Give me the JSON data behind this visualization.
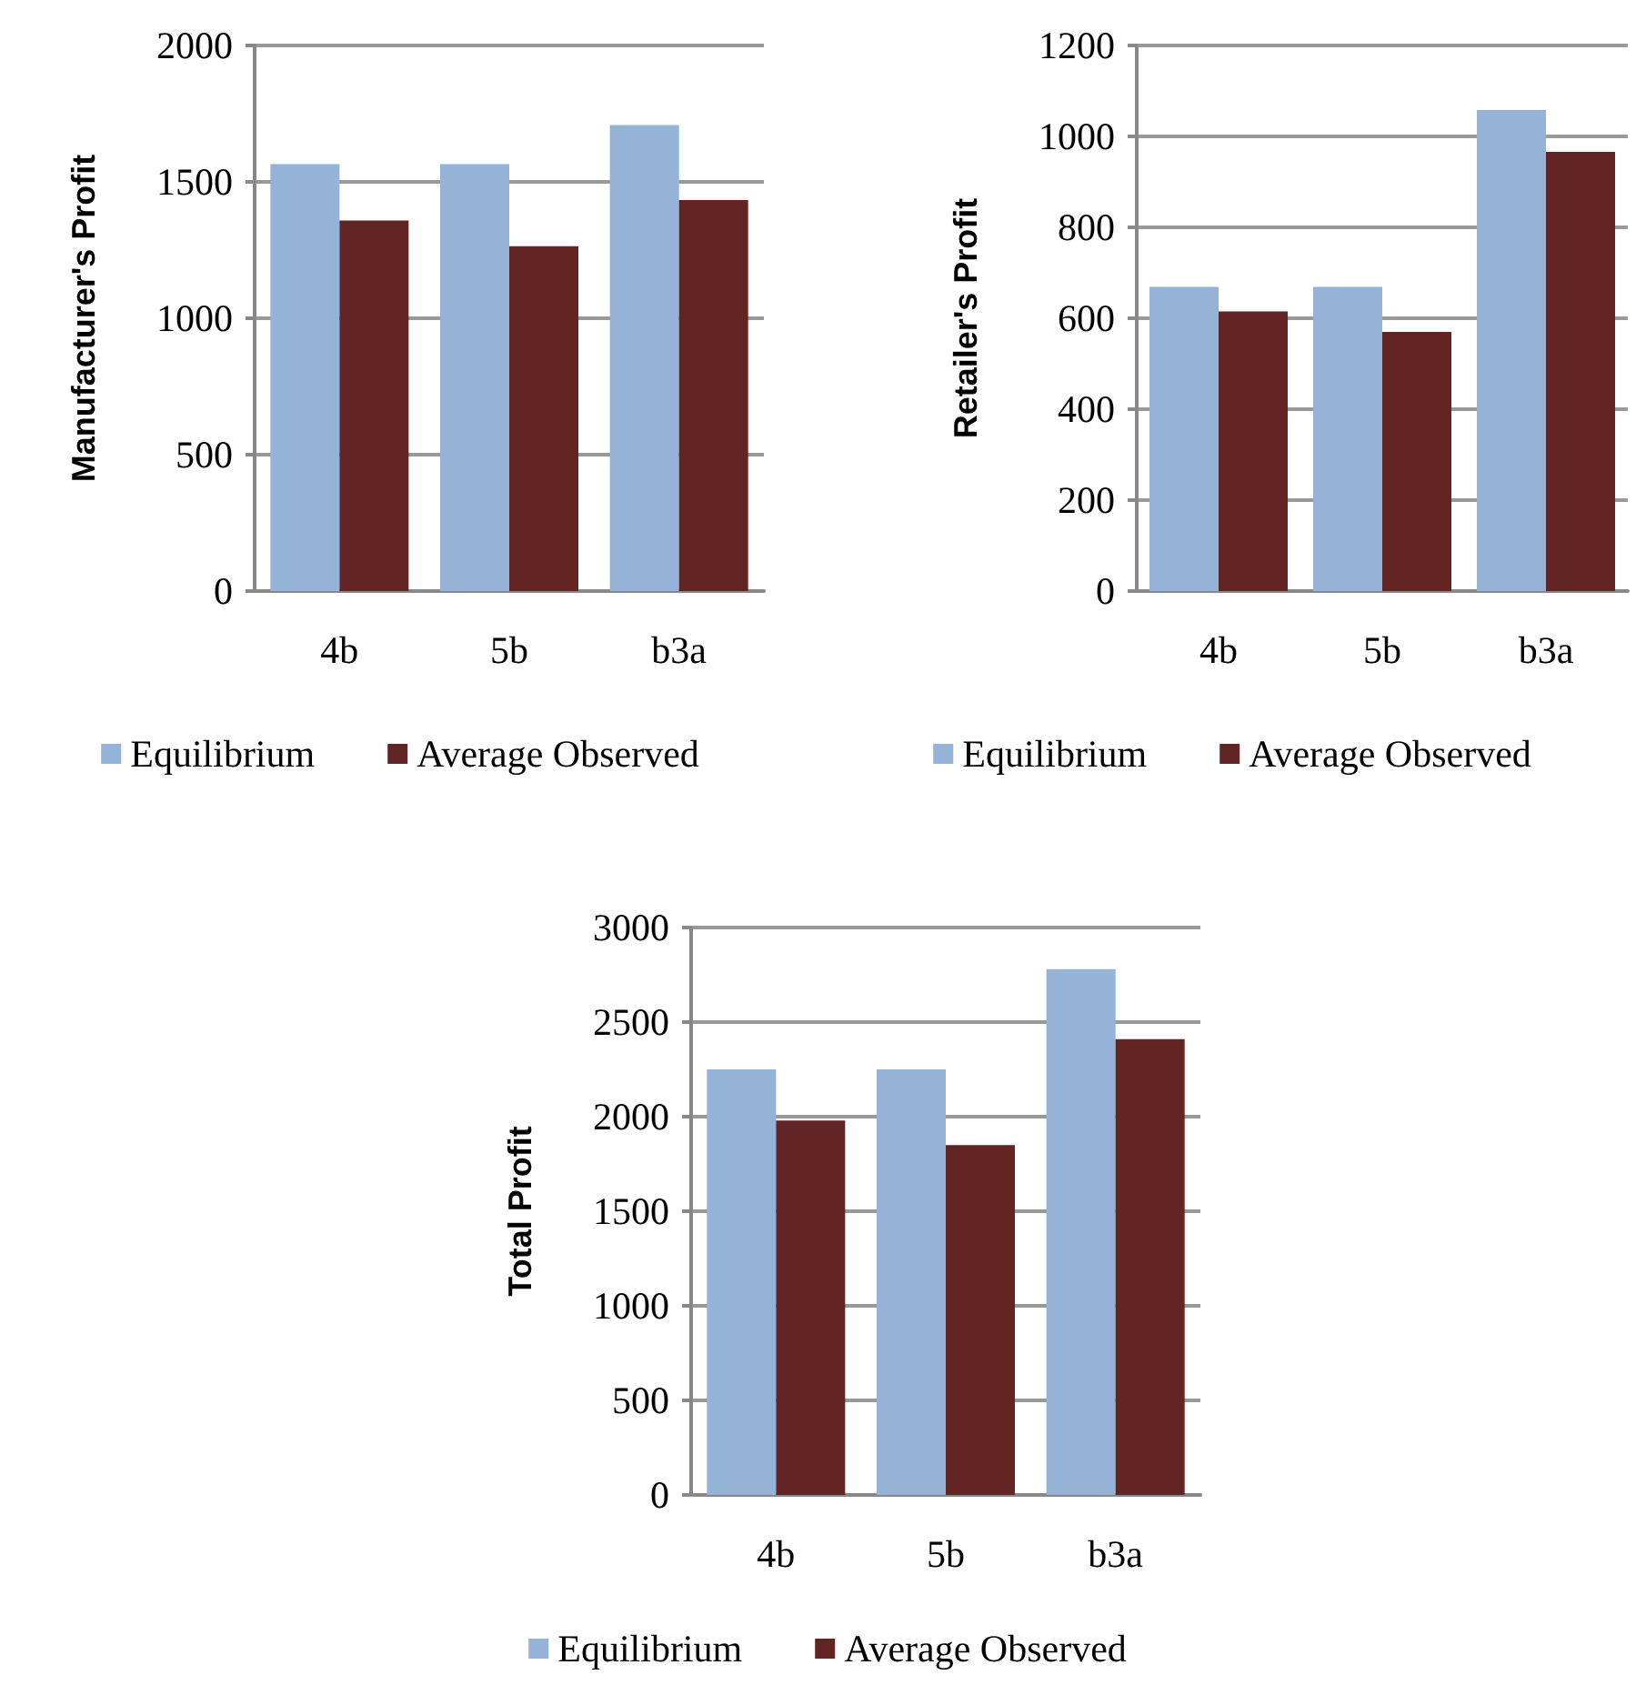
{
  "chart_data": [
    {
      "type": "bar",
      "ylabel": "Manufacturer's Profit",
      "categories": [
        "4b",
        "5b",
        "b3a"
      ],
      "series": [
        {
          "name": "Equilibrium",
          "color": "#95b3d7",
          "values": [
            1565,
            1565,
            1708
          ]
        },
        {
          "name": "Average Observed",
          "color": "#632523",
          "values": [
            1358,
            1264,
            1433
          ]
        }
      ],
      "ylim": [
        0,
        2000
      ],
      "yticks": [
        0,
        500,
        1000,
        1500,
        2000
      ],
      "grid": "y",
      "legend": "bottom"
    },
    {
      "type": "bar",
      "ylabel": "Retailer's Profit",
      "categories": [
        "4b",
        "5b",
        "b3a"
      ],
      "series": [
        {
          "name": "Equilibrium",
          "color": "#95b3d7",
          "values": [
            669,
            669,
            1058
          ]
        },
        {
          "name": "Average Observed",
          "color": "#632523",
          "values": [
            615,
            570,
            966
          ]
        }
      ],
      "ylim": [
        0,
        1200
      ],
      "yticks": [
        0,
        200,
        400,
        600,
        800,
        1000,
        1200
      ],
      "grid": "y",
      "legend": "bottom"
    },
    {
      "type": "bar",
      "ylabel": "Total Profit",
      "categories": [
        "4b",
        "5b",
        "b3a"
      ],
      "series": [
        {
          "name": "Equilibrium",
          "color": "#95b3d7",
          "values": [
            2250,
            2250,
            2780
          ]
        },
        {
          "name": "Average Observed",
          "color": "#632523",
          "values": [
            1980,
            1850,
            2410
          ]
        }
      ],
      "ylim": [
        0,
        3000
      ],
      "yticks": [
        0,
        500,
        1000,
        1500,
        2000,
        2500,
        3000
      ],
      "grid": "y",
      "legend": "bottom"
    }
  ]
}
